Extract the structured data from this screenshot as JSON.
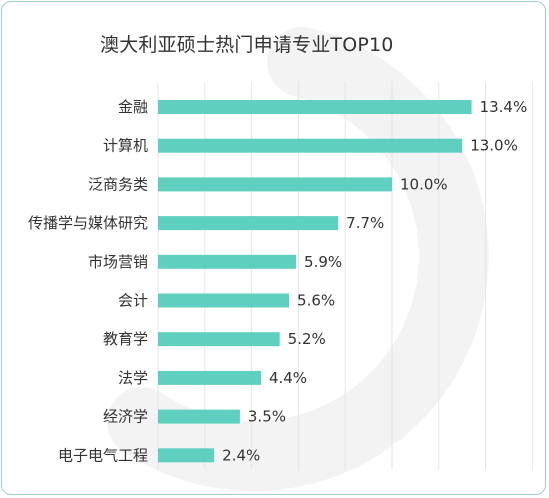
{
  "chart_data": {
    "type": "bar",
    "orientation": "horizontal",
    "title": "澳大利亚硕士热门申请专业TOP10",
    "categories": [
      "金融",
      "计算机",
      "泛商务类",
      "传播学与媒体研究",
      "市场营销",
      "会计",
      "教育学",
      "法学",
      "经济学",
      "电子电气工程"
    ],
    "values": [
      13.4,
      13.0,
      10.0,
      7.7,
      5.9,
      5.6,
      5.2,
      4.4,
      3.5,
      2.4
    ],
    "value_labels": [
      "13.4%",
      "13.0%",
      "10.0%",
      "7.7%",
      "5.9%",
      "5.6%",
      "5.2%",
      "4.4%",
      "3.5%",
      "2.4%"
    ],
    "xlim": [
      0,
      16
    ],
    "grid": true,
    "legend": "none",
    "bar_color": "#5fcfc0",
    "grid_color": "#e6e6e6",
    "watermark_color": "#f3f3f3"
  }
}
